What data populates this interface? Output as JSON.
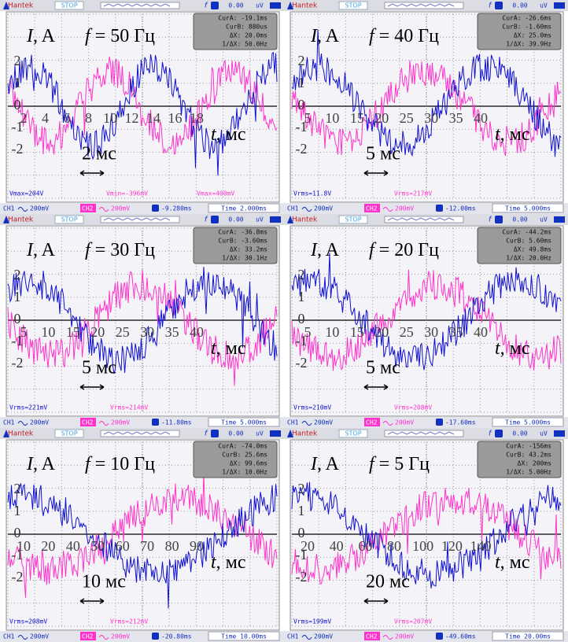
{
  "panels": [
    {
      "header": {
        "brand": "Hantek",
        "status": "STOP",
        "trigger_value": "0.00",
        "trigger_unit": "uV"
      },
      "cursors": [
        "CurA: -19.1ms",
        "CurB: 880us",
        "ΔX: 20.0ms",
        "1/ΔX: 50.0Hz"
      ],
      "readouts": [
        "Vmax=204V",
        "Vmin=-396mV",
        "Vmax=400mV"
      ],
      "footer": {
        "ch1": "CH1",
        "ch1_scale": "200mV",
        "ch2": "CH2",
        "ch2_scale": "200mV",
        "offset": "-9.280ms",
        "timebase": "Time 2.000ms"
      },
      "overlay": {
        "y_symbol": "I",
        "y_unit": ", A",
        "f_symbol": "f",
        "f_value": "= 50 Гц",
        "y_ticks": [
          "2",
          "1",
          "0",
          "-1",
          "-2"
        ],
        "x_ticks": [
          "2",
          "4",
          "6",
          "8",
          "10",
          "12",
          "14",
          "16",
          "18"
        ],
        "x_symbol": "t",
        "x_unit": ", мс",
        "scale": "2 мс"
      }
    },
    {
      "header": {
        "brand": "Hantek",
        "status": "STOP",
        "trigger_value": "0.00",
        "trigger_unit": "uV"
      },
      "cursors": [
        "CurA: -26.6ms",
        "CurB: -1.60ms",
        "ΔX: 25.0ms",
        "1/ΔX: 39.9Hz"
      ],
      "readouts": [
        "Vrms=11.8V",
        "Vrms=217mV"
      ],
      "footer": {
        "ch1": "CH1",
        "ch1_scale": "200mV",
        "ch2": "CH2",
        "ch2_scale": "200mV",
        "offset": "-12.00ms",
        "timebase": "Time 5.000ms"
      },
      "overlay": {
        "y_symbol": "I",
        "y_unit": ", A",
        "f_symbol": "f",
        "f_value": "= 40 Гц",
        "y_ticks": [
          "2",
          "1",
          "0",
          "-1",
          "-2"
        ],
        "x_ticks": [
          "5",
          "10",
          "15",
          "20",
          "25",
          "30",
          "35",
          "40"
        ],
        "x_symbol": "t",
        "x_unit": ", мс",
        "scale": "5 мс"
      }
    },
    {
      "header": {
        "brand": "Hantek",
        "status": "STOP",
        "trigger_value": "0.00",
        "trigger_unit": "uV"
      },
      "cursors": [
        "CurA: -36.8ms",
        "CurB: -3.60ms",
        "ΔX: 33.2ms",
        "1/ΔX: 30.1Hz"
      ],
      "readouts": [
        "Vrms=221mV",
        "Vrms=214mV"
      ],
      "footer": {
        "ch1": "CH1",
        "ch1_scale": "200mV",
        "ch2": "CH2",
        "ch2_scale": "200mV",
        "offset": "-11.80ms",
        "timebase": "Time 5.000ms"
      },
      "overlay": {
        "y_symbol": "I",
        "y_unit": ", A",
        "f_symbol": "f",
        "f_value": "= 30 Гц",
        "y_ticks": [
          "2",
          "1",
          "0",
          "-1",
          "-2"
        ],
        "x_ticks": [
          "5",
          "10",
          "15",
          "20",
          "25",
          "30",
          "35",
          "40"
        ],
        "x_symbol": "t",
        "x_unit": ", мс",
        "scale": "5 мс"
      }
    },
    {
      "header": {
        "brand": "Hantek",
        "status": "STOP",
        "trigger_value": "0.00",
        "trigger_unit": "uV"
      },
      "cursors": [
        "CurA: -44.2ms",
        "CurB: 5.60ms",
        "ΔX: 49.8ms",
        "1/ΔX: 20.0Hz"
      ],
      "readouts": [
        "Vrms=210mV",
        "Vrms=208mV"
      ],
      "footer": {
        "ch1": "CH1",
        "ch1_scale": "200mV",
        "ch2": "CH2",
        "ch2_scale": "200mV",
        "offset": "-17.60ms",
        "timebase": "Time 5.000ms"
      },
      "overlay": {
        "y_symbol": "I",
        "y_unit": ", A",
        "f_symbol": "f",
        "f_value": "= 20 Гц",
        "y_ticks": [
          "2",
          "1",
          "0",
          "-1",
          "-2"
        ],
        "x_ticks": [
          "5",
          "10",
          "15",
          "20",
          "25",
          "30",
          "35",
          "40"
        ],
        "x_symbol": "t",
        "x_unit": ", мс",
        "scale": "5 мс"
      }
    },
    {
      "header": {
        "brand": "Hantek",
        "status": "STOP",
        "trigger_value": "0.00",
        "trigger_unit": "uV"
      },
      "cursors": [
        "CurA: -74.0ms",
        "CurB: 25.6ms",
        "ΔX: 99.6ms",
        "1/ΔX: 10.0Hz"
      ],
      "readouts": [
        "Vrms=208mV",
        "Vrms=212mV"
      ],
      "footer": {
        "ch1": "CH1",
        "ch1_scale": "200mV",
        "ch2": "CH2",
        "ch2_scale": "200mV",
        "offset": "-20.80ms",
        "timebase": "Time 10.00ms"
      },
      "overlay": {
        "y_symbol": "I",
        "y_unit": ", A",
        "f_symbol": "f",
        "f_value": "= 10 Гц",
        "y_ticks": [
          "2",
          "1",
          "0",
          "-1",
          "-2"
        ],
        "x_ticks": [
          "10",
          "20",
          "40",
          "50",
          "60",
          "70",
          "80",
          "90"
        ],
        "x_symbol": "t",
        "x_unit": ", мс",
        "scale": "10 мс"
      }
    },
    {
      "header": {
        "brand": "Hantek",
        "status": "STOP",
        "trigger_value": "0.00",
        "trigger_unit": "uV"
      },
      "cursors": [
        "CurA: -156ms",
        "CurB: 43.2ms",
        "ΔX: 200ms",
        "1/ΔX: 5.00Hz"
      ],
      "readouts": [
        "Vrms=199mV",
        "Vrms=207mV"
      ],
      "footer": {
        "ch1": "CH1",
        "ch1_scale": "200mV",
        "ch2": "CH2",
        "ch2_scale": "200mV",
        "offset": "-49.60ms",
        "timebase": "Time 20.00ms"
      },
      "overlay": {
        "y_symbol": "I",
        "y_unit": ", A",
        "f_symbol": "f",
        "f_value": "= 5 Гц",
        "y_ticks": [
          "2",
          "1",
          "0",
          "-1",
          "-2"
        ],
        "x_ticks": [
          "20",
          "40",
          "60",
          "80",
          "100",
          "120",
          "140"
        ],
        "x_symbol": "t",
        "x_unit": ", мс",
        "scale": "20 мс"
      }
    }
  ]
}
